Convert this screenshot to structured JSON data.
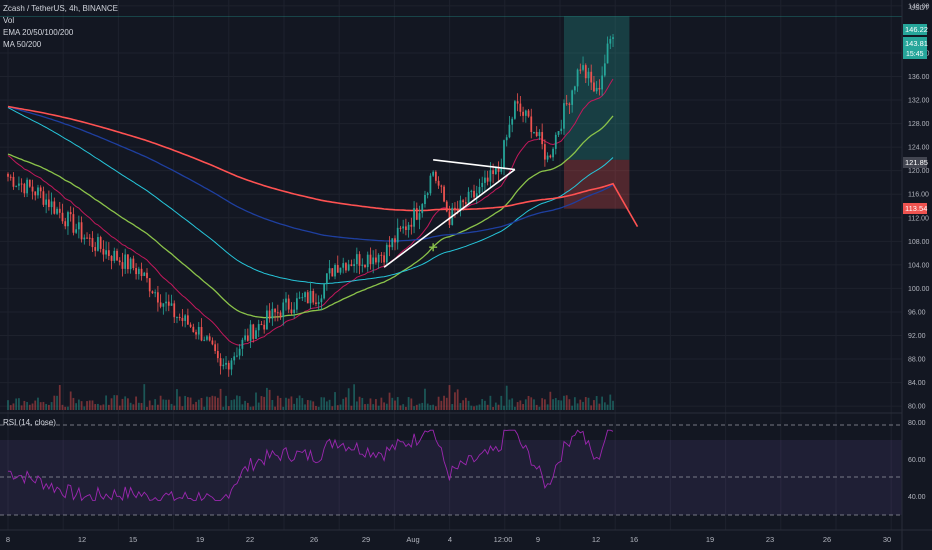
{
  "symbol": {
    "title": "Zcash / TetherUS, 4h, BINANCE",
    "vol_label": "Vol",
    "ema_label": "EMA 20/50/100/200",
    "ma_label": "MA 50/200"
  },
  "rsi": {
    "label": "RSI (14, close)",
    "ticks": [
      "80.00",
      "60.00",
      "40.00"
    ]
  },
  "colors": {
    "up": "#26a69a",
    "down": "#ef5350",
    "ema20": "#c2185b",
    "ema50": "#8bc34a",
    "ema100": "#26c6da",
    "ema200": "#1e3fa0",
    "ma200": "#ff5252",
    "rsi": "#9c27b0",
    "target_zone": "#26a69a",
    "stop_zone": "#ef5350"
  },
  "price_axis": {
    "currency": "USDT",
    "ticks": [
      "148.00",
      "140.00",
      "136.00",
      "132.00",
      "128.00",
      "124.00",
      "120.00",
      "116.00",
      "112.00",
      "108.00",
      "104.00",
      "100.00",
      "96.00",
      "92.00",
      "88.00",
      "84.00",
      "80.00"
    ],
    "tags": {
      "target": "146.22",
      "last_price": "143.81",
      "countdown": "15:45",
      "entry": "121.85",
      "stop": "113.54"
    }
  },
  "time_axis": {
    "labels": [
      "8",
      "12",
      "15",
      "19",
      "22",
      "26",
      "29",
      "Aug",
      "4",
      "12:00",
      "9",
      "12",
      "16",
      "19",
      "23",
      "26",
      "30"
    ]
  },
  "chart_data": {
    "type": "candlestick",
    "title": "Zcash / TetherUS, 4h, BINANCE",
    "ylim": [
      79,
      149
    ],
    "x_domain": [
      "Jul 7",
      "Aug 30"
    ],
    "events": [
      {
        "x": "Jul 7",
        "y": 119
      },
      {
        "x": "Jul 9",
        "y": 116
      },
      {
        "x": "Jul 12",
        "y": 108
      },
      {
        "x": "Jul 15",
        "y": 103
      },
      {
        "x": "Jul 17",
        "y": 96
      },
      {
        "x": "Jul 19",
        "y": 92
      },
      {
        "x": "Jul 20",
        "y": 86
      },
      {
        "x": "Jul 22",
        "y": 93
      },
      {
        "x": "Jul 24",
        "y": 97
      },
      {
        "x": "Jul 26",
        "y": 99
      },
      {
        "x": "Jul 27",
        "y": 104
      },
      {
        "x": "Jul 30",
        "y": 106
      },
      {
        "x": "Aug 1",
        "y": 113
      },
      {
        "x": "Aug 2",
        "y": 120
      },
      {
        "x": "Aug 3",
        "y": 112
      },
      {
        "x": "Aug 5",
        "y": 117
      },
      {
        "x": "Aug 6",
        "y": 120
      },
      {
        "x": "Aug 7",
        "y": 131
      },
      {
        "x": "Aug 8",
        "y": 128
      },
      {
        "x": "Aug 9",
        "y": 122
      },
      {
        "x": "Aug 10",
        "y": 130
      },
      {
        "x": "Aug 11",
        "y": 138
      },
      {
        "x": "Aug 12",
        "y": 133
      },
      {
        "x": "Aug 13",
        "y": 144
      }
    ],
    "trade_box": {
      "from": "Aug 10",
      "to": "Aug 14",
      "entry": 121.85,
      "target": 146.22,
      "stop": 113.54
    },
    "trendlines": [
      {
        "from": [
          "Aug 2",
          121.85
        ],
        "to": [
          "Aug 7",
          120.2
        ]
      },
      {
        "from": [
          "Jul 30",
          103.6
        ],
        "to": [
          "Aug 7",
          120.2
        ]
      }
    ]
  }
}
